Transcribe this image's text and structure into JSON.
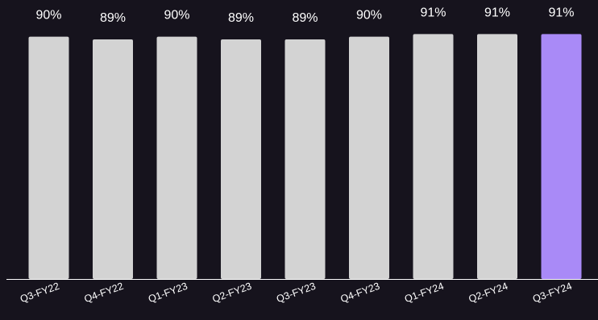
{
  "chart_data": {
    "type": "bar",
    "title": "",
    "xlabel": "",
    "ylabel": "",
    "categories": [
      "Q3-FY22",
      "Q4-FY22",
      "Q1-FY23",
      "Q2-FY23",
      "Q3-FY23",
      "Q4-FY23",
      "Q1-FY24",
      "Q2-FY24",
      "Q3-FY24"
    ],
    "values": [
      90,
      89,
      90,
      89,
      89,
      90,
      91,
      91,
      91
    ],
    "value_labels": [
      "90%",
      "89%",
      "90%",
      "89%",
      "89%",
      "90%",
      "91%",
      "91%",
      "91%"
    ],
    "ylim": [
      0,
      100
    ],
    "grid": false,
    "legend": "none",
    "highlight_index": 8
  },
  "colors": {
    "background": "#16131d",
    "bar": "#d3d3d3",
    "highlight": "#a98af7",
    "axis": "#ffffff",
    "text": "#ffffff"
  }
}
